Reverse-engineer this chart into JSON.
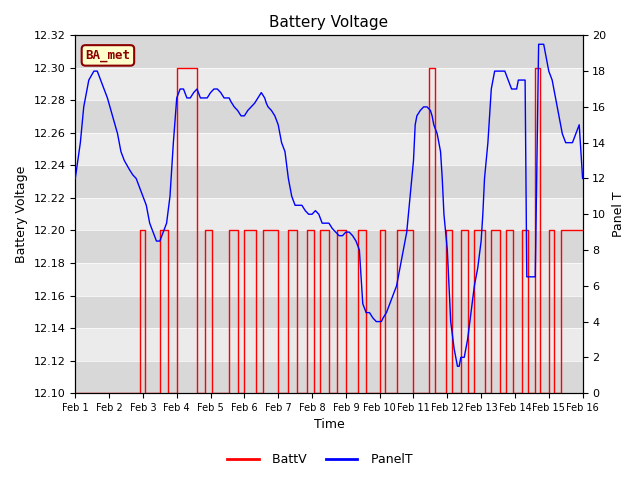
{
  "title": "Battery Voltage",
  "xlabel": "Time",
  "ylabel_left": "Battery Voltage",
  "ylabel_right": "Panel T",
  "ylim_left": [
    12.1,
    12.32
  ],
  "ylim_right": [
    0,
    20
  ],
  "xlim": [
    0,
    15
  ],
  "xtick_labels": [
    "Feb 1",
    "Feb 2",
    "Feb 3",
    "Feb 4",
    "Feb 5",
    "Feb 6",
    "Feb 7",
    "Feb 8",
    "Feb 9",
    "Feb 10",
    "Feb 11",
    "Feb 12",
    "Feb 13",
    "Feb 14",
    "Feb 15",
    "Feb 16"
  ],
  "yticks_left": [
    12.1,
    12.12,
    12.14,
    12.16,
    12.18,
    12.2,
    12.22,
    12.24,
    12.26,
    12.28,
    12.3,
    12.32
  ],
  "yticks_right": [
    0,
    2,
    4,
    6,
    8,
    10,
    12,
    14,
    16,
    18,
    20
  ],
  "bg_color_light": "#ebebeb",
  "bg_color_dark": "#d8d8d8",
  "batt_color": "red",
  "panel_color": "blue",
  "annotation_text": "BA_met",
  "annotation_color": "#8B0000",
  "annotation_bg": "#ffffcc",
  "batt_data_x": [
    0.0,
    1.9,
    1.9,
    2.05,
    2.05,
    2.5,
    2.5,
    2.75,
    2.75,
    3.0,
    3.0,
    3.6,
    3.6,
    3.85,
    3.85,
    4.05,
    4.05,
    4.55,
    4.55,
    4.8,
    4.8,
    5.0,
    5.0,
    5.35,
    5.35,
    5.55,
    5.55,
    6.0,
    6.0,
    6.3,
    6.3,
    6.55,
    6.55,
    6.85,
    6.85,
    7.05,
    7.05,
    7.25,
    7.25,
    7.5,
    7.5,
    7.75,
    7.75,
    8.0,
    8.0,
    8.35,
    8.35,
    8.6,
    8.6,
    9.0,
    9.0,
    9.15,
    9.15,
    9.5,
    9.5,
    10.0,
    10.0,
    10.45,
    10.45,
    10.65,
    10.65,
    10.95,
    10.95,
    11.15,
    11.15,
    11.4,
    11.4,
    11.6,
    11.6,
    11.8,
    11.8,
    12.1,
    12.1,
    12.3,
    12.3,
    12.55,
    12.55,
    12.75,
    12.75,
    12.95,
    12.95,
    13.2,
    13.2,
    13.4,
    13.4,
    13.6,
    13.6,
    13.75,
    13.75,
    14.0,
    14.0,
    14.15,
    14.15,
    14.35,
    14.35,
    15.0
  ],
  "batt_data_y": [
    12.1,
    12.1,
    12.2,
    12.2,
    12.1,
    12.1,
    12.2,
    12.2,
    12.1,
    12.1,
    12.3,
    12.3,
    12.1,
    12.1,
    12.2,
    12.2,
    12.1,
    12.1,
    12.2,
    12.2,
    12.1,
    12.1,
    12.2,
    12.2,
    12.1,
    12.1,
    12.2,
    12.2,
    12.1,
    12.1,
    12.2,
    12.2,
    12.1,
    12.1,
    12.2,
    12.2,
    12.1,
    12.1,
    12.2,
    12.2,
    12.1,
    12.1,
    12.2,
    12.2,
    12.1,
    12.1,
    12.2,
    12.2,
    12.1,
    12.1,
    12.2,
    12.2,
    12.1,
    12.1,
    12.2,
    12.2,
    12.1,
    12.1,
    12.3,
    12.3,
    12.1,
    12.1,
    12.2,
    12.2,
    12.1,
    12.1,
    12.2,
    12.2,
    12.1,
    12.1,
    12.2,
    12.2,
    12.1,
    12.1,
    12.2,
    12.2,
    12.1,
    12.1,
    12.2,
    12.2,
    12.1,
    12.1,
    12.2,
    12.2,
    12.1,
    12.1,
    12.3,
    12.3,
    12.1,
    12.1,
    12.2,
    12.2,
    12.1,
    12.1,
    12.2,
    12.2
  ],
  "panel_data_x": [
    0.0,
    0.15,
    0.25,
    0.4,
    0.55,
    0.65,
    0.75,
    0.85,
    0.95,
    1.1,
    1.25,
    1.35,
    1.45,
    1.6,
    1.7,
    1.8,
    1.9,
    2.0,
    2.1,
    2.15,
    2.2,
    2.3,
    2.4,
    2.5,
    2.6,
    2.7,
    2.8,
    2.9,
    3.0,
    3.1,
    3.15,
    3.2,
    3.3,
    3.4,
    3.5,
    3.6,
    3.7,
    3.8,
    3.85,
    3.9,
    4.0,
    4.1,
    4.2,
    4.3,
    4.4,
    4.5,
    4.55,
    4.6,
    4.7,
    4.8,
    4.9,
    5.0,
    5.1,
    5.2,
    5.3,
    5.4,
    5.5,
    5.6,
    5.65,
    5.7,
    5.8,
    5.9,
    6.0,
    6.05,
    6.1,
    6.2,
    6.3,
    6.4,
    6.5,
    6.6,
    6.7,
    6.8,
    6.9,
    7.0,
    7.1,
    7.2,
    7.3,
    7.35,
    7.4,
    7.5,
    7.6,
    7.7,
    7.8,
    7.9,
    8.0,
    8.05,
    8.1,
    8.2,
    8.3,
    8.4,
    8.5,
    8.6,
    8.7,
    8.8,
    8.9,
    9.0,
    9.05,
    9.1,
    9.2,
    9.3,
    9.4,
    9.5,
    9.6,
    9.7,
    9.8,
    9.85,
    9.9,
    10.0,
    10.05,
    10.1,
    10.2,
    10.3,
    10.4,
    10.5,
    10.55,
    10.6,
    10.7,
    10.75,
    10.8,
    10.85,
    10.9,
    11.0,
    11.05,
    11.1,
    11.2,
    11.3,
    11.35,
    11.4,
    11.5,
    11.55,
    11.6,
    11.7,
    11.8,
    11.9,
    12.0,
    12.05,
    12.1,
    12.2,
    12.3,
    12.4,
    12.5,
    12.6,
    12.7,
    12.8,
    12.9,
    13.0,
    13.05,
    13.1,
    13.2,
    13.3,
    13.35,
    13.4,
    13.5,
    13.55,
    13.6,
    13.7,
    13.8,
    13.85,
    13.9,
    14.0,
    14.1,
    14.2,
    14.3,
    14.4,
    14.5,
    14.6,
    14.7,
    14.8,
    14.9,
    15.0
  ],
  "panel_data_y": [
    12.0,
    14.0,
    16.0,
    17.5,
    18.0,
    18.0,
    17.5,
    17.0,
    16.5,
    15.5,
    14.5,
    13.5,
    13.0,
    12.5,
    12.2,
    12.0,
    11.5,
    11.0,
    10.5,
    10.0,
    9.5,
    9.0,
    8.5,
    8.5,
    9.0,
    9.5,
    11.0,
    14.0,
    16.5,
    17.0,
    17.0,
    17.0,
    16.5,
    16.5,
    16.8,
    17.0,
    16.5,
    16.5,
    16.5,
    16.5,
    16.8,
    17.0,
    17.0,
    16.8,
    16.5,
    16.5,
    16.5,
    16.3,
    16.0,
    15.8,
    15.5,
    15.5,
    15.8,
    16.0,
    16.2,
    16.5,
    16.8,
    16.5,
    16.2,
    16.0,
    15.8,
    15.5,
    15.0,
    14.5,
    14.0,
    13.5,
    12.0,
    11.0,
    10.5,
    10.5,
    10.5,
    10.2,
    10.0,
    10.0,
    10.2,
    10.0,
    9.5,
    9.5,
    9.5,
    9.5,
    9.2,
    9.0,
    8.8,
    8.8,
    9.0,
    9.0,
    9.0,
    8.8,
    8.5,
    8.0,
    5.0,
    4.5,
    4.5,
    4.2,
    4.0,
    4.0,
    4.0,
    4.2,
    4.5,
    5.0,
    5.5,
    6.0,
    7.0,
    8.0,
    9.0,
    10.0,
    11.0,
    13.0,
    15.0,
    15.5,
    15.8,
    16.0,
    16.0,
    15.8,
    15.5,
    15.0,
    14.5,
    14.0,
    13.5,
    12.0,
    10.0,
    8.0,
    6.0,
    4.0,
    2.5,
    1.5,
    1.5,
    2.0,
    2.0,
    2.5,
    3.0,
    4.5,
    6.0,
    7.0,
    8.5,
    10.0,
    12.0,
    14.0,
    17.0,
    18.0,
    18.0,
    18.0,
    18.0,
    17.5,
    17.0,
    17.0,
    17.0,
    17.5,
    17.5,
    17.5,
    6.5,
    6.5,
    6.5,
    6.5,
    6.5,
    19.5,
    19.5,
    19.5,
    19.0,
    18.0,
    17.5,
    16.5,
    15.5,
    14.5,
    14.0,
    14.0,
    14.0,
    14.5,
    15.0,
    12.0
  ]
}
